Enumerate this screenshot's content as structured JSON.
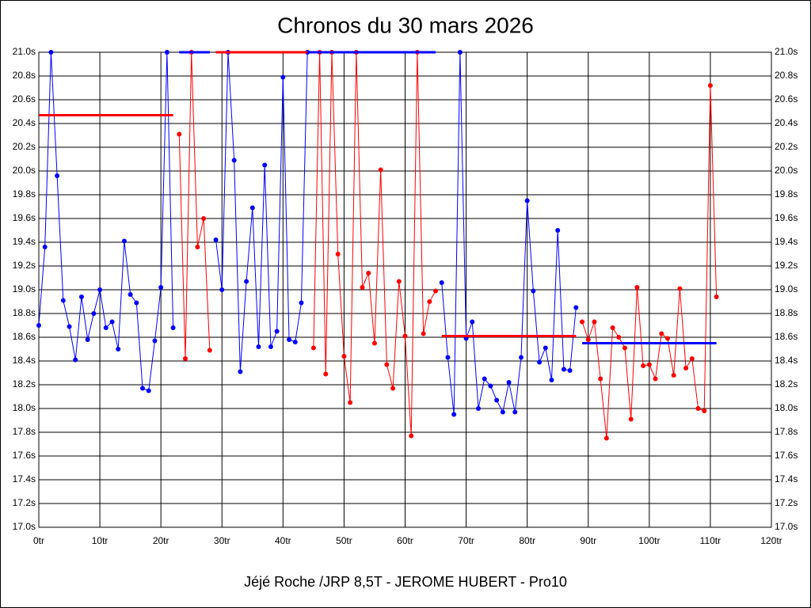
{
  "chart_data": {
    "type": "line",
    "title": "Chronos du 30 mars 2026",
    "xlabel": "Jéjé Roche /JRP 8,5T - JEROME HUBERT - Pro10",
    "xlim": [
      0,
      120
    ],
    "xticks": [
      {
        "value": 0,
        "label": "0tr"
      },
      {
        "value": 10,
        "label": "10tr"
      },
      {
        "value": 20,
        "label": "20tr"
      },
      {
        "value": 30,
        "label": "30tr"
      },
      {
        "value": 40,
        "label": "40tr"
      },
      {
        "value": 50,
        "label": "50tr"
      },
      {
        "value": 60,
        "label": "60tr"
      },
      {
        "value": 70,
        "label": "70tr"
      },
      {
        "value": 80,
        "label": "80tr"
      },
      {
        "value": 90,
        "label": "90tr"
      },
      {
        "value": 100,
        "label": "100tr"
      },
      {
        "value": 110,
        "label": "110tr"
      },
      {
        "value": 120,
        "label": "120tr"
      }
    ],
    "ylim": [
      17.0,
      21.0
    ],
    "yticks": [
      {
        "value": 17.0,
        "label": "17.0s"
      },
      {
        "value": 17.2,
        "label": "17.2s"
      },
      {
        "value": 17.4,
        "label": "17.4s"
      },
      {
        "value": 17.6,
        "label": "17.6s"
      },
      {
        "value": 17.8,
        "label": "17.8s"
      },
      {
        "value": 18.0,
        "label": "18.0s"
      },
      {
        "value": 18.2,
        "label": "18.2s"
      },
      {
        "value": 18.4,
        "label": "18.4s"
      },
      {
        "value": 18.6,
        "label": "18.6s"
      },
      {
        "value": 18.8,
        "label": "18.8s"
      },
      {
        "value": 19.0,
        "label": "19.0s"
      },
      {
        "value": 19.2,
        "label": "19.2s"
      },
      {
        "value": 19.4,
        "label": "19.4s"
      },
      {
        "value": 19.6,
        "label": "19.6s"
      },
      {
        "value": 19.8,
        "label": "19.8s"
      },
      {
        "value": 20.0,
        "label": "20.0s"
      },
      {
        "value": 20.2,
        "label": "20.2s"
      },
      {
        "value": 20.4,
        "label": "20.4s"
      },
      {
        "value": 20.6,
        "label": "20.6s"
      },
      {
        "value": 20.8,
        "label": "20.8s"
      },
      {
        "value": 21.0,
        "label": "21.0s"
      }
    ],
    "grid": true,
    "x": [
      0,
      1,
      2,
      3,
      4,
      5,
      6,
      7,
      8,
      9,
      10,
      11,
      12,
      13,
      14,
      15,
      16,
      17,
      18,
      19,
      20,
      21,
      22,
      23,
      24,
      25,
      26,
      27,
      28,
      29,
      30,
      31,
      32,
      33,
      34,
      35,
      36,
      37,
      38,
      39,
      40,
      41,
      42,
      43,
      44,
      45,
      46,
      47,
      48,
      49,
      50,
      51,
      52,
      53,
      54,
      55,
      56,
      57,
      58,
      59,
      60,
      61,
      62,
      63,
      64,
      65,
      66,
      67,
      68,
      69,
      70,
      71,
      72,
      73,
      74,
      75,
      76,
      77,
      78,
      79,
      80,
      81,
      82,
      83,
      84,
      85,
      86,
      87,
      88,
      89,
      90,
      91,
      92,
      93,
      94,
      95,
      96,
      97,
      98,
      99,
      100,
      101,
      102,
      103,
      104,
      105,
      106,
      107,
      108,
      109,
      110,
      111
    ],
    "series": [
      {
        "color": "#0000ff",
        "values": [
          18.7,
          19.36,
          21.0,
          19.96,
          18.91,
          18.69,
          18.41,
          18.94,
          18.58,
          18.8,
          19.0,
          18.68,
          18.73,
          18.5,
          19.41,
          18.96,
          18.89,
          18.17,
          18.15,
          18.57,
          19.02,
          21.0,
          18.68,
          null,
          null,
          null,
          null,
          null,
          null,
          19.42,
          19.0,
          21.0,
          20.09,
          18.31,
          19.07,
          19.69,
          18.52,
          20.05,
          18.52,
          18.65,
          20.79,
          18.58,
          18.56,
          18.89,
          21.0,
          null,
          null,
          null,
          null,
          null,
          null,
          null,
          null,
          null,
          null,
          null,
          null,
          null,
          null,
          null,
          null,
          null,
          null,
          null,
          null,
          null,
          19.06,
          18.43,
          17.95,
          21.0,
          18.59,
          18.73,
          18.0,
          18.25,
          18.19,
          18.07,
          17.97,
          18.22,
          17.97,
          18.43,
          19.75,
          18.99,
          18.39,
          18.51,
          18.24,
          19.5,
          18.33,
          18.32,
          18.85,
          null,
          null,
          null,
          null,
          null,
          null,
          null,
          null,
          null,
          null,
          null,
          null,
          null,
          null,
          null,
          null,
          null,
          null,
          null,
          null,
          null,
          null,
          null
        ]
      },
      {
        "color": "#ff0000",
        "values": [
          null,
          null,
          null,
          null,
          null,
          null,
          null,
          null,
          null,
          null,
          null,
          null,
          null,
          null,
          null,
          null,
          null,
          null,
          null,
          null,
          null,
          null,
          null,
          20.31,
          18.42,
          21.0,
          19.36,
          19.6,
          18.49,
          null,
          null,
          null,
          null,
          null,
          null,
          null,
          null,
          null,
          null,
          null,
          null,
          null,
          null,
          null,
          null,
          18.51,
          21.0,
          18.29,
          21.0,
          19.3,
          18.44,
          18.05,
          21.0,
          19.02,
          19.14,
          18.55,
          20.01,
          18.37,
          18.17,
          19.07,
          18.61,
          17.77,
          21.0,
          18.63,
          18.9,
          18.99,
          null,
          null,
          null,
          null,
          null,
          null,
          null,
          null,
          null,
          null,
          null,
          null,
          null,
          null,
          null,
          null,
          null,
          null,
          null,
          null,
          null,
          null,
          null,
          18.73,
          18.58,
          18.73,
          18.25,
          17.75,
          18.68,
          18.6,
          18.51,
          17.91,
          19.02,
          18.36,
          18.37,
          18.25,
          18.63,
          18.59,
          18.28,
          19.01,
          18.34,
          18.42,
          18.0,
          17.98,
          20.72,
          18.94
        ]
      }
    ],
    "averages": [
      {
        "x": [
          0,
          22
        ],
        "value": 20.47,
        "color": "#ff0000"
      },
      {
        "x": [
          23,
          28
        ],
        "value": 21.0,
        "color": "#0000ff"
      },
      {
        "x": [
          29,
          44
        ],
        "value": 21.0,
        "color": "#ff0000"
      },
      {
        "x": [
          44,
          65
        ],
        "value": 21.0,
        "color": "#0000ff"
      },
      {
        "x": [
          66,
          88
        ],
        "value": 18.61,
        "color": "#ff0000"
      },
      {
        "x": [
          89,
          111
        ],
        "value": 18.55,
        "color": "#0000ff"
      }
    ]
  }
}
